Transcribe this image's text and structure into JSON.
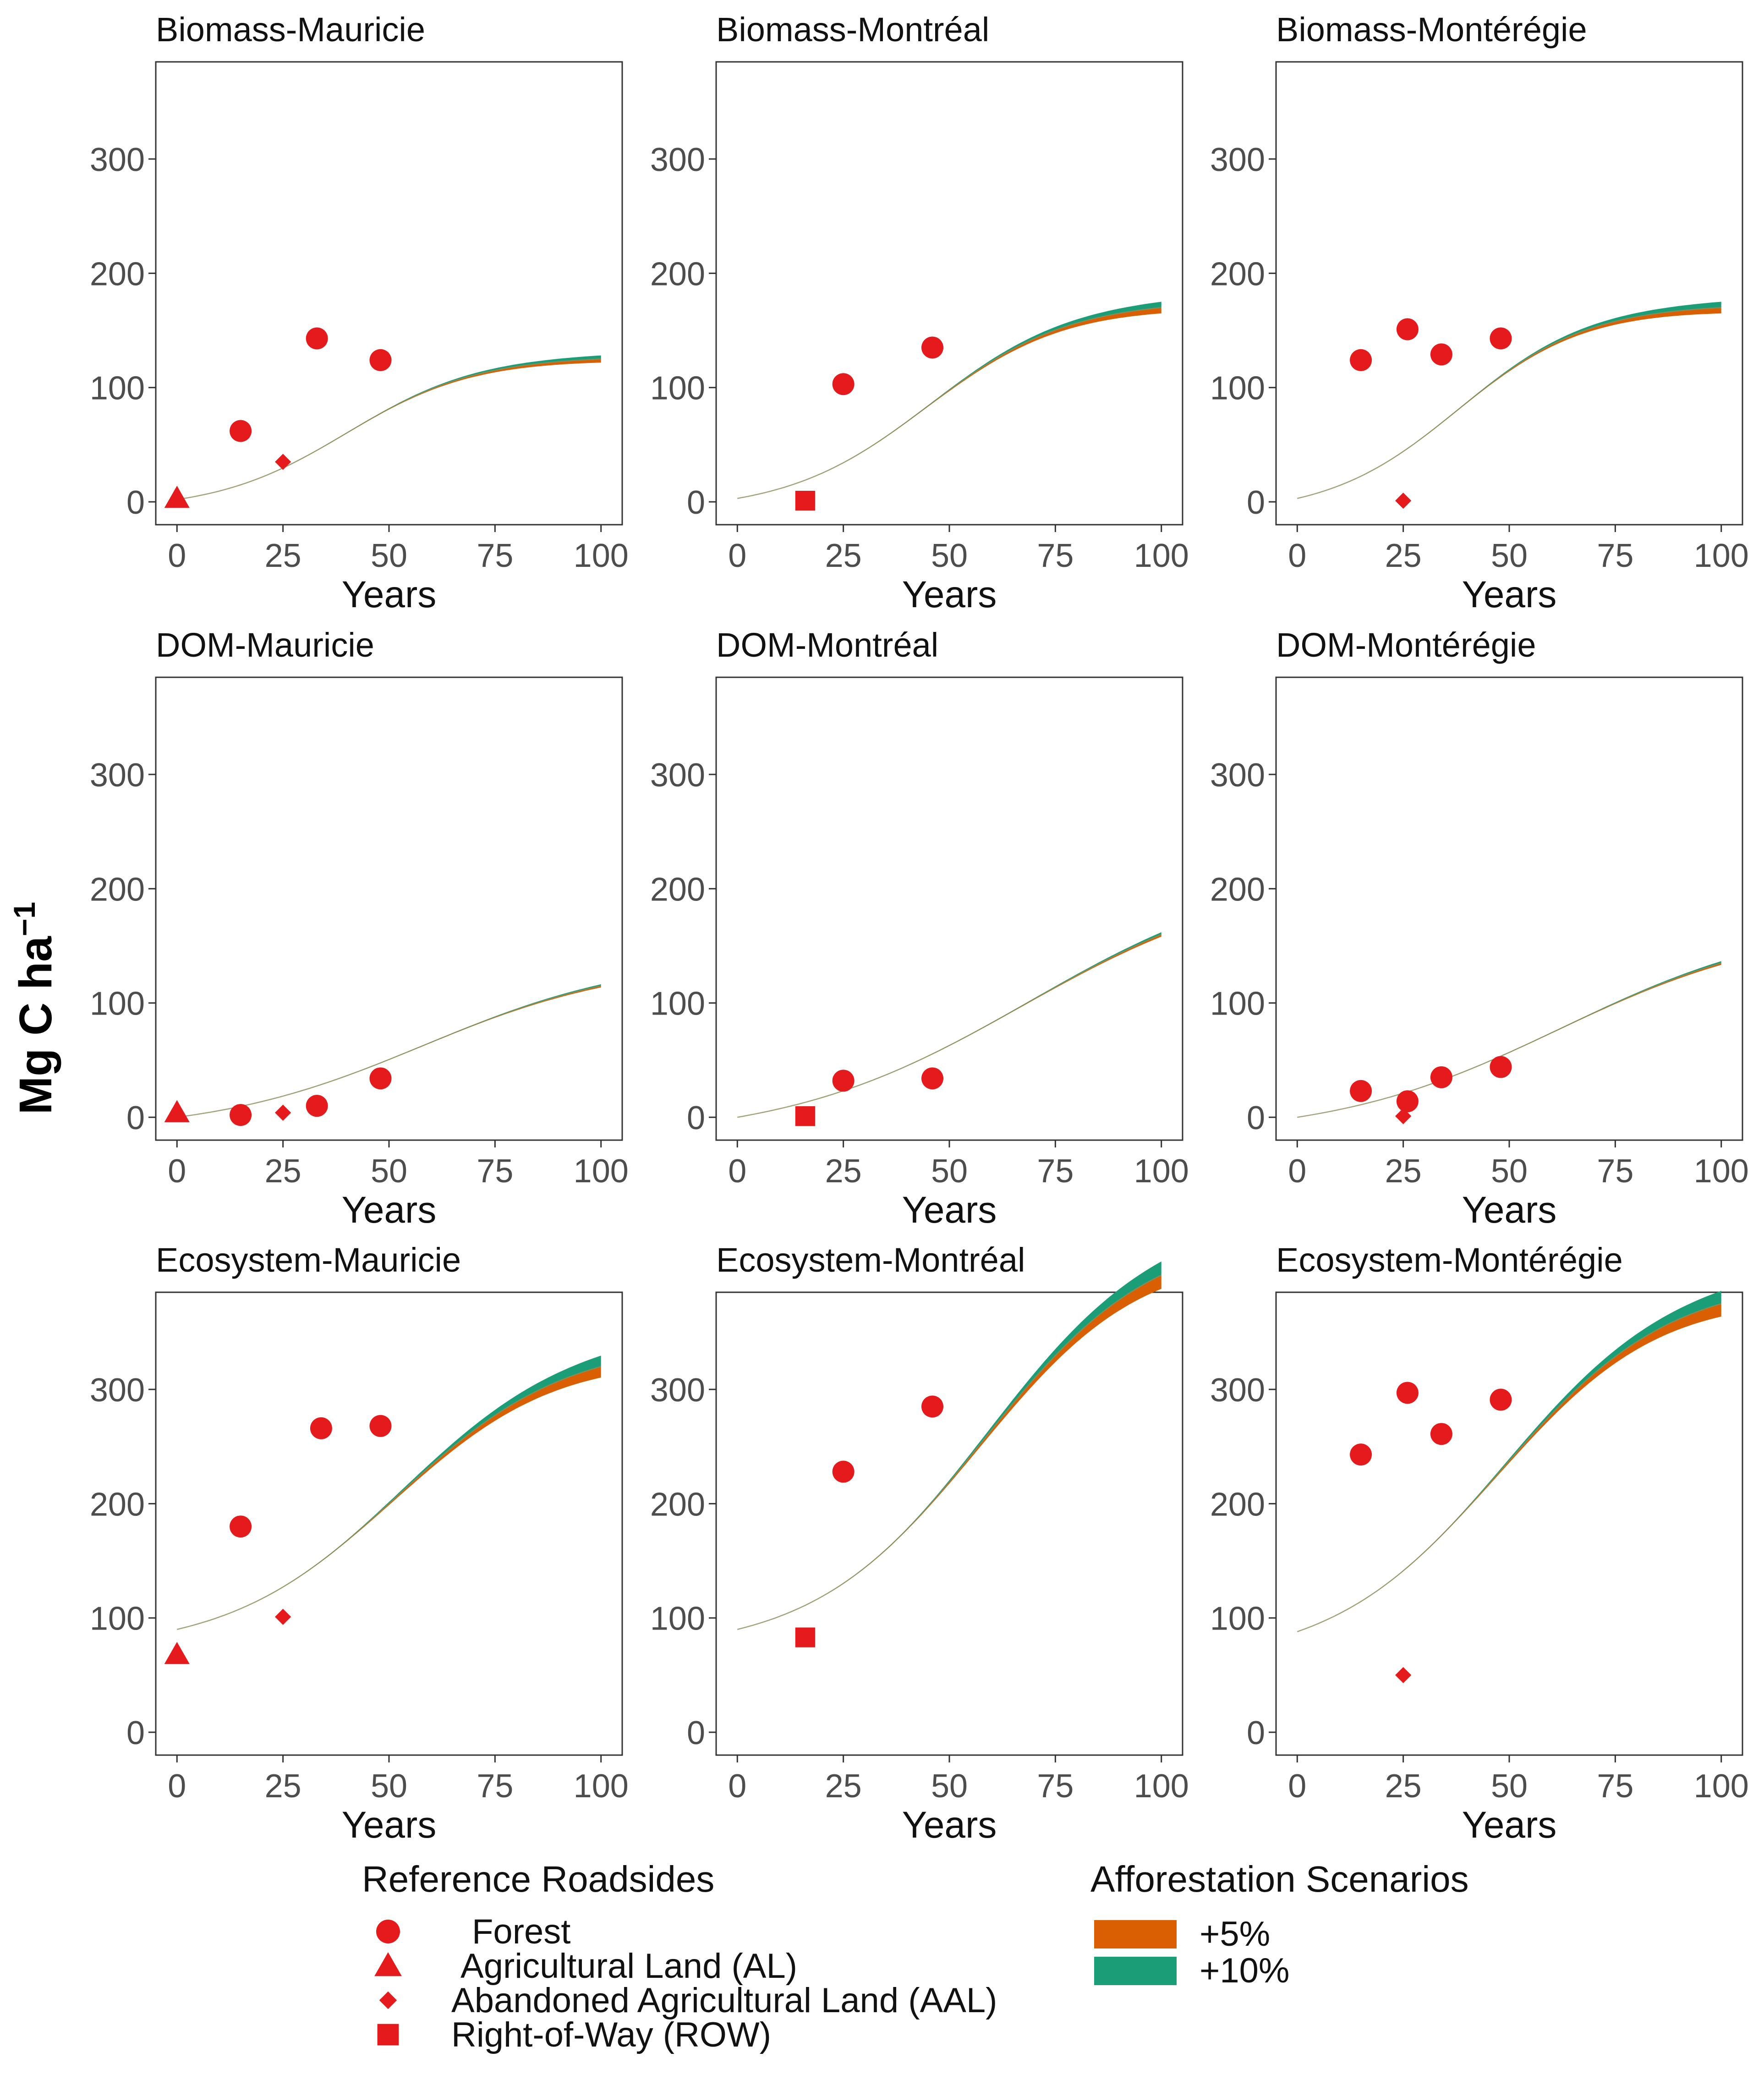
{
  "chart_data": {
    "type": "line",
    "y_axis_title": "Mg C ha",
    "y_axis_superscript": "−1",
    "x_axis_title": "Years",
    "xlim": [
      -5,
      105
    ],
    "ylim": [
      -20,
      385
    ],
    "x_ticks": [
      0,
      25,
      50,
      75,
      100
    ],
    "y_ticks": [
      0,
      100,
      200,
      300
    ],
    "grid": false,
    "colors": {
      "points": "#e41a1c",
      "band_5": "#d95f02",
      "band_10": "#1b9e77",
      "line": "#8c8c5a"
    },
    "panels": [
      {
        "title": "Biomass-Mauricie",
        "curve": {
          "start": 2,
          "asym": 125,
          "mid": 40,
          "steep": 0.065,
          "spread": 0.025
        },
        "points": [
          {
            "shape": "triangle",
            "x": 0,
            "y": 3
          },
          {
            "shape": "circle",
            "x": 15,
            "y": 62
          },
          {
            "shape": "diamond",
            "x": 25,
            "y": 35
          },
          {
            "shape": "circle",
            "x": 33,
            "y": 143
          },
          {
            "shape": "circle",
            "x": 48,
            "y": 124
          }
        ]
      },
      {
        "title": "Biomass-Montréal",
        "curve": {
          "start": 3,
          "asym": 170,
          "mid": 45,
          "steep": 0.06,
          "spread": 0.03
        },
        "points": [
          {
            "shape": "square",
            "x": 16,
            "y": 1
          },
          {
            "shape": "circle",
            "x": 25,
            "y": 103
          },
          {
            "shape": "circle",
            "x": 46,
            "y": 135
          }
        ]
      },
      {
        "title": "Biomass-Montérégie",
        "curve": {
          "start": 3,
          "asym": 170,
          "mid": 38,
          "steep": 0.065,
          "spread": 0.03
        },
        "points": [
          {
            "shape": "circle",
            "x": 15,
            "y": 124
          },
          {
            "shape": "circle",
            "x": 26,
            "y": 151
          },
          {
            "shape": "diamond",
            "x": 25,
            "y": 1
          },
          {
            "shape": "circle",
            "x": 34,
            "y": 129
          },
          {
            "shape": "circle",
            "x": 48,
            "y": 143
          }
        ]
      },
      {
        "title": "DOM-Mauricie",
        "curve": {
          "start": 0,
          "asym": 115,
          "mid": 58,
          "steep": 0.04,
          "spread": 0.012
        },
        "points": [
          {
            "shape": "triangle",
            "x": 0,
            "y": 4
          },
          {
            "shape": "circle",
            "x": 15,
            "y": 2
          },
          {
            "shape": "diamond",
            "x": 25,
            "y": 4
          },
          {
            "shape": "circle",
            "x": 33,
            "y": 10
          },
          {
            "shape": "circle",
            "x": 48,
            "y": 34
          }
        ]
      },
      {
        "title": "DOM-Montréal",
        "curve": {
          "start": 0,
          "asym": 160,
          "mid": 68,
          "steep": 0.035,
          "spread": 0.012
        },
        "points": [
          {
            "shape": "square",
            "x": 16,
            "y": 1
          },
          {
            "shape": "circle",
            "x": 25,
            "y": 32
          },
          {
            "shape": "circle",
            "x": 46,
            "y": 34
          }
        ]
      },
      {
        "title": "DOM-Montérégie",
        "curve": {
          "start": 0,
          "asym": 135,
          "mid": 62,
          "steep": 0.037,
          "spread": 0.012
        },
        "points": [
          {
            "shape": "circle",
            "x": 15,
            "y": 23
          },
          {
            "shape": "circle",
            "x": 26,
            "y": 14
          },
          {
            "shape": "diamond",
            "x": 25,
            "y": 1
          },
          {
            "shape": "circle",
            "x": 34,
            "y": 35
          },
          {
            "shape": "circle",
            "x": 48,
            "y": 44
          }
        ]
      },
      {
        "title": "Ecosystem-Mauricie",
        "curve": {
          "start": 90,
          "asym": 320,
          "mid": 52,
          "steep": 0.05,
          "spread": 0.03
        },
        "points": [
          {
            "shape": "triangle",
            "x": 0,
            "y": 68
          },
          {
            "shape": "circle",
            "x": 15,
            "y": 180
          },
          {
            "shape": "diamond",
            "x": 25,
            "y": 101
          },
          {
            "shape": "circle",
            "x": 34,
            "y": 266
          },
          {
            "shape": "circle",
            "x": 48,
            "y": 268
          }
        ]
      },
      {
        "title": "Ecosystem-Montréal",
        "curve": {
          "start": 90,
          "asym": 400,
          "mid": 58,
          "steep": 0.05,
          "spread": 0.03
        },
        "points": [
          {
            "shape": "square",
            "x": 16,
            "y": 83
          },
          {
            "shape": "circle",
            "x": 25,
            "y": 228
          },
          {
            "shape": "circle",
            "x": 46,
            "y": 285
          }
        ]
      },
      {
        "title": "Ecosystem-Montérégie",
        "curve": {
          "start": 88,
          "asym": 375,
          "mid": 48,
          "steep": 0.05,
          "spread": 0.03
        },
        "points": [
          {
            "shape": "circle",
            "x": 15,
            "y": 243
          },
          {
            "shape": "circle",
            "x": 26,
            "y": 297
          },
          {
            "shape": "diamond",
            "x": 25,
            "y": 50
          },
          {
            "shape": "circle",
            "x": 34,
            "y": 261
          },
          {
            "shape": "circle",
            "x": 48,
            "y": 291
          }
        ]
      }
    ],
    "legends": {
      "reference": {
        "title": "Reference Roadsides",
        "items": [
          {
            "shape": "circle",
            "label": "Forest"
          },
          {
            "shape": "triangle",
            "label": "Agricultural Land (AL)"
          },
          {
            "shape": "diamond",
            "label": "Abandoned Agricultural Land (AAL)"
          },
          {
            "shape": "square",
            "label": "Right-of-Way (ROW)"
          }
        ]
      },
      "scenarios": {
        "title": "Afforestation Scenarios",
        "items": [
          {
            "key": "band_5",
            "label": "+5%"
          },
          {
            "key": "band_10",
            "label": "+10%"
          }
        ]
      }
    }
  }
}
